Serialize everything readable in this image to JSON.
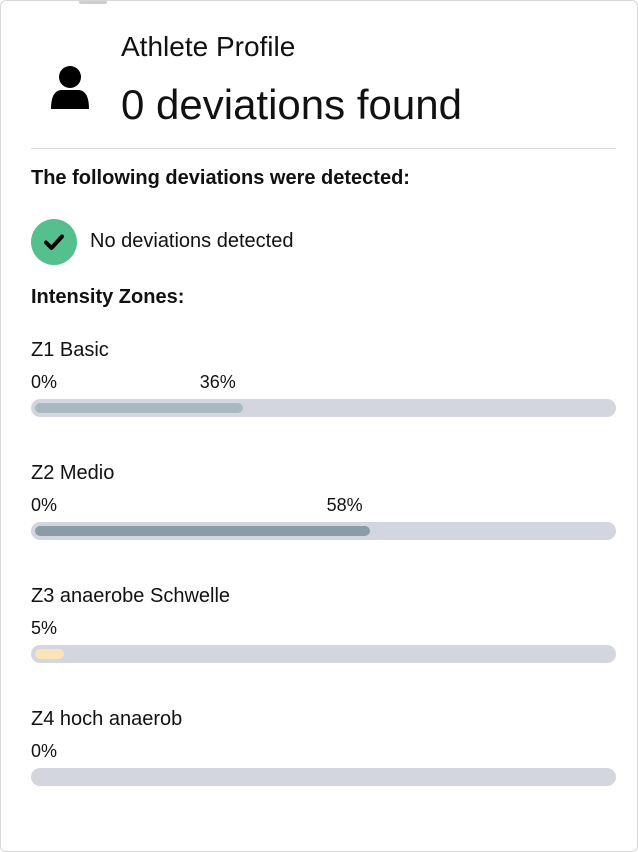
{
  "header": {
    "subtitle": "Athlete Profile",
    "title": "0 deviations found",
    "icon": "user-icon"
  },
  "deviations": {
    "heading": "The following deviations were detected:",
    "status_icon": "check-circle-icon",
    "status_text": "No deviations detected",
    "status_color": "#56bf8e"
  },
  "intensity_zones": {
    "heading": "Intensity Zones:",
    "zones": [
      {
        "name": "Z1 Basic",
        "start_label": "0%",
        "value_label": "36%",
        "percent": 36,
        "color": "#aab8c2"
      },
      {
        "name": "Z2 Medio",
        "start_label": "0%",
        "value_label": "58%",
        "percent": 58,
        "color": "#8a9da7"
      },
      {
        "name": "Z3 anaerobe Schwelle",
        "start_label": "",
        "value_label": "5%",
        "percent": 5,
        "color": "#fbe4b8"
      },
      {
        "name": "Z4 hoch anaerob",
        "start_label": "",
        "value_label": "0%",
        "percent": 0,
        "color": "#d3d6de"
      }
    ],
    "track_color": "#d3d6de"
  }
}
